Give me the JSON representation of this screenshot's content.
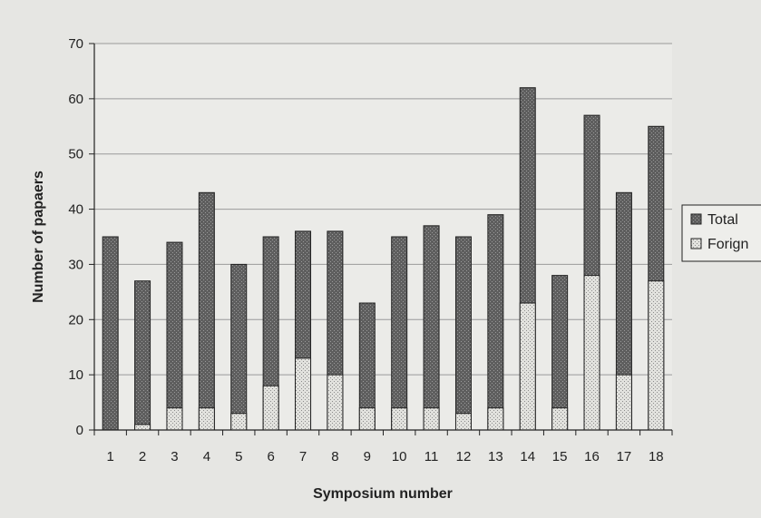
{
  "chart_data": {
    "type": "bar",
    "stacked": false,
    "overlaid": true,
    "categories": [
      "1",
      "2",
      "3",
      "4",
      "5",
      "6",
      "7",
      "8",
      "9",
      "10",
      "11",
      "12",
      "13",
      "14",
      "15",
      "16",
      "17",
      "18"
    ],
    "series": [
      {
        "name": "Total",
        "values": [
          35,
          27,
          34,
          43,
          30,
          35,
          36,
          36,
          23,
          35,
          37,
          35,
          39,
          62,
          28,
          57,
          43,
          55
        ],
        "color": "#6f6f6f"
      },
      {
        "name": "Forign",
        "values": [
          0,
          1,
          4,
          4,
          3,
          8,
          13,
          10,
          4,
          4,
          4,
          3,
          4,
          23,
          4,
          28,
          10,
          27
        ],
        "color": "#d6d6d2"
      }
    ],
    "xlabel": "Symposium number",
    "ylabel": "Number of papaers",
    "ylim": [
      0,
      70
    ],
    "yticks": [
      0,
      10,
      20,
      30,
      40,
      50,
      60,
      70
    ],
    "grid": true,
    "legend": "right"
  }
}
